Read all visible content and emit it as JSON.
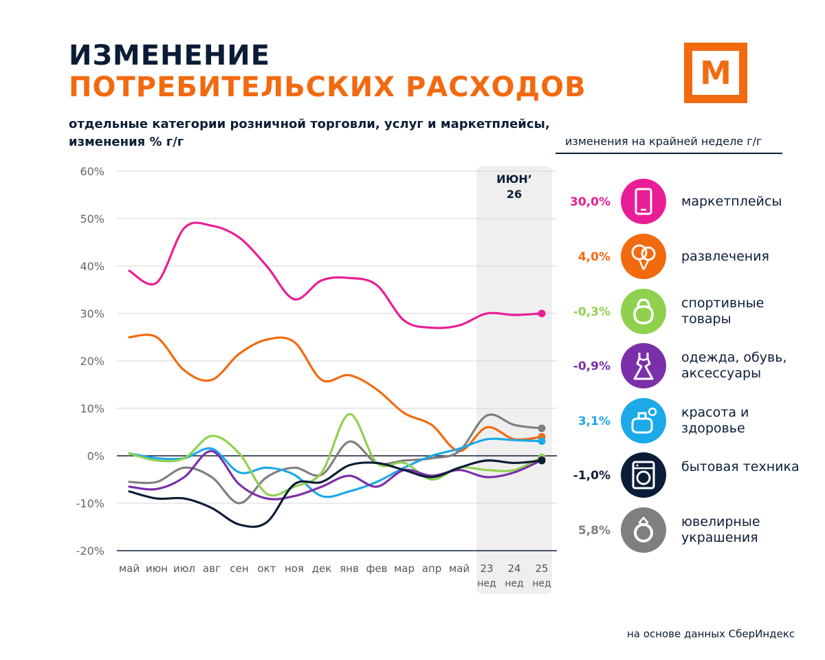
{
  "header": {
    "title_line1": "ИЗМЕНЕНИЕ",
    "title_line2": "ПОТРЕБИТЕЛЬСКИХ РАСХОДОВ",
    "subtitle": "отдельные категории розничной торговли, услуг  и маркетплейсы, изменения % г/г",
    "logo_letter": "М"
  },
  "legend": {
    "header": "изменения на крайней неделе г/г",
    "items": [
      {
        "value": "30,0%",
        "label": "маркетплейсы",
        "color": "#e91e96",
        "icon": "tablet-icon"
      },
      {
        "value": "4,0%",
        "label": "развлечения",
        "color": "#f26a10",
        "icon": "balloons-icon"
      },
      {
        "value": "-0,3%",
        "label": "спортивные товары",
        "color": "#8fd14f",
        "icon": "kettlebell-icon"
      },
      {
        "value": "-0,9%",
        "label": "одежда, обувь, аксессуары",
        "color": "#7b2fa8",
        "icon": "dress-icon"
      },
      {
        "value": "3,1%",
        "label": "красота и здоровье",
        "color": "#1ba9e8",
        "icon": "perfume-icon"
      },
      {
        "value": "-1,0%",
        "label": "бытовая техника",
        "color": "#0b1d36",
        "icon": "washing-machine-icon"
      },
      {
        "value": "5,8%",
        "label": "ювелирные украшения",
        "color": "#7f7f7f",
        "icon": "ring-icon"
      }
    ]
  },
  "source": "на основе данных СберИндекс",
  "chart_data": {
    "type": "line",
    "categories": [
      "май",
      "июн",
      "июл",
      "авг",
      "сен",
      "окт",
      "ноя",
      "дек",
      "янв",
      "фев",
      "мар",
      "апр",
      "май",
      "23",
      "24",
      "25"
    ],
    "category_sublabels": [
      "",
      "",
      "",
      "",
      "",
      "",
      "",
      "",
      "",
      "",
      "",
      "",
      "",
      "нед",
      "нед",
      "нед"
    ],
    "highlight": {
      "from_index": 13,
      "to_index": 15,
      "label_line1": "ИЮН’",
      "label_line2": "26"
    },
    "yticks": [
      "60%",
      "50%",
      "40%",
      "30%",
      "20%",
      "10%",
      "0%",
      "-10%",
      "-20%"
    ],
    "ylim": [
      -20,
      60
    ],
    "unit": "%",
    "series": [
      {
        "name": "маркетплейсы",
        "color": "#e91e96",
        "values": [
          39,
          36.5,
          48,
          48.5,
          46,
          40,
          33,
          37,
          37.5,
          36,
          28.5,
          27,
          27.5,
          30,
          29.7,
          30.0
        ]
      },
      {
        "name": "развлечения",
        "color": "#f26a10",
        "values": [
          25,
          25,
          18,
          16,
          21.5,
          24.5,
          24,
          16,
          17,
          14,
          9,
          6.5,
          1,
          6,
          3.5,
          4.0
        ]
      },
      {
        "name": "спортивные товары",
        "color": "#8fd14f",
        "values": [
          0.5,
          -1,
          -0.5,
          4.2,
          0.5,
          -8,
          -6.5,
          -3.5,
          8.8,
          -1.5,
          -1.5,
          -5,
          -2.5,
          -3,
          -3,
          -0.3
        ]
      },
      {
        "name": "одежда, обувь, аксессуары",
        "color": "#7b2fa8",
        "values": [
          -6.5,
          -7,
          -4.5,
          1,
          -6,
          -9,
          -8.5,
          -6.5,
          -4.2,
          -6.5,
          -3,
          -4.2,
          -3,
          -4.5,
          -3.5,
          -0.9
        ]
      },
      {
        "name": "красота и здоровье",
        "color": "#1ba9e8",
        "values": [
          0.5,
          -0.5,
          -0.5,
          1.5,
          -3.5,
          -2.5,
          -4,
          -8.5,
          -7.5,
          -5.5,
          -2.5,
          0,
          1.5,
          3.5,
          3.3,
          3.1
        ]
      },
      {
        "name": "бытовая техника",
        "color": "#0b1d36",
        "values": [
          -7.5,
          -9,
          -9,
          -11,
          -14.5,
          -14,
          -6,
          -5.5,
          -2,
          -1.5,
          -3,
          -4.5,
          -2.5,
          -1,
          -1.5,
          -1.0
        ]
      },
      {
        "name": "ювелирные украшения",
        "color": "#7f7f7f",
        "values": [
          -5.5,
          -5.5,
          -2.5,
          -4.5,
          -10,
          -4.5,
          -2.5,
          -4,
          3,
          -1.5,
          -1,
          -0.5,
          1,
          8.5,
          6.5,
          5.8
        ]
      }
    ]
  }
}
